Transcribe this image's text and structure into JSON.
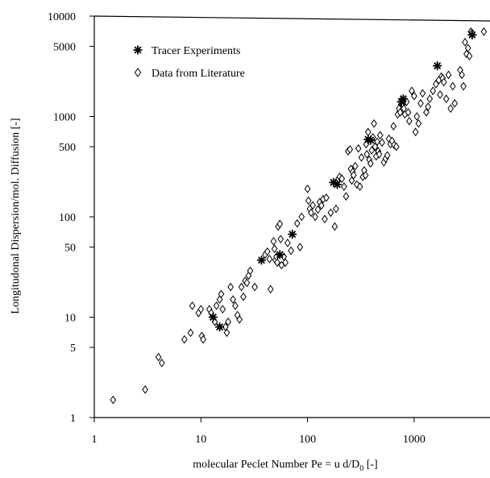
{
  "chart_data": {
    "type": "scatter",
    "xscale": "log",
    "yscale": "log",
    "xlim": [
      1,
      5000
    ],
    "ylim": [
      1,
      10000
    ],
    "x_ticks": [
      1,
      10,
      100,
      1000
    ],
    "x_tick_labels": [
      "1",
      "10",
      "100",
      "1000"
    ],
    "y_ticks": [
      1,
      5,
      10,
      50,
      100,
      500,
      1000,
      5000,
      10000
    ],
    "y_tick_labels": [
      "1",
      "5",
      "10",
      "50",
      "100",
      "500",
      "1000",
      "5000",
      "10000"
    ],
    "xlabel": {
      "main": "molecular Peclet Number  Pe = u d/D",
      "sub": "0",
      "tail": " [-]"
    },
    "ylabel": "Longitudonal Dispersion/mol. Diffusion [-]",
    "grid": false,
    "legend_position": "top-left",
    "series": [
      {
        "name": "Tracer Experiments",
        "marker": "asterisk",
        "points": [
          [
            13,
            10
          ],
          [
            15,
            8
          ],
          [
            37,
            37
          ],
          [
            55,
            42
          ],
          [
            72,
            67
          ],
          [
            175,
            220
          ],
          [
            190,
            210
          ],
          [
            370,
            590
          ],
          [
            390,
            580
          ],
          [
            760,
            1400
          ],
          [
            790,
            1500
          ],
          [
            1650,
            3200
          ],
          [
            3500,
            6500
          ]
        ]
      },
      {
        "name": "Data from Literature",
        "marker": "diamond",
        "points": [
          [
            1.5,
            1.5
          ],
          [
            3,
            1.9
          ],
          [
            4,
            4
          ],
          [
            4.3,
            3.5
          ],
          [
            7,
            6
          ],
          [
            8,
            7
          ],
          [
            8.3,
            13
          ],
          [
            9.5,
            11
          ],
          [
            10,
            12
          ],
          [
            10.2,
            6.5
          ],
          [
            10.5,
            6
          ],
          [
            12,
            12
          ],
          [
            12.5,
            11
          ],
          [
            13.5,
            9
          ],
          [
            14,
            13
          ],
          [
            15,
            15
          ],
          [
            15.5,
            17
          ],
          [
            16,
            12
          ],
          [
            17,
            8
          ],
          [
            17.5,
            7
          ],
          [
            18,
            9
          ],
          [
            19,
            20
          ],
          [
            20,
            15
          ],
          [
            21,
            13
          ],
          [
            22,
            10.5
          ],
          [
            23,
            9.5
          ],
          [
            24,
            20
          ],
          [
            25,
            16
          ],
          [
            26,
            23
          ],
          [
            27,
            22
          ],
          [
            28,
            26
          ],
          [
            29,
            29
          ],
          [
            32,
            20
          ],
          [
            40,
            42
          ],
          [
            42,
            45
          ],
          [
            44,
            38
          ],
          [
            45,
            19
          ],
          [
            48,
            57
          ],
          [
            49,
            48
          ],
          [
            50,
            37
          ],
          [
            51,
            40
          ],
          [
            52,
            35
          ],
          [
            53,
            80
          ],
          [
            55,
            85
          ],
          [
            56,
            60
          ],
          [
            57,
            33
          ],
          [
            60,
            40
          ],
          [
            62,
            35
          ],
          [
            65,
            55
          ],
          [
            70,
            46
          ],
          [
            80,
            86
          ],
          [
            85,
            50
          ],
          [
            88,
            100
          ],
          [
            100,
            190
          ],
          [
            102,
            145
          ],
          [
            105,
            120
          ],
          [
            108,
            110
          ],
          [
            112,
            130
          ],
          [
            118,
            100
          ],
          [
            125,
            118
          ],
          [
            130,
            140
          ],
          [
            135,
            130
          ],
          [
            140,
            150
          ],
          [
            145,
            95
          ],
          [
            150,
            155
          ],
          [
            165,
            110
          ],
          [
            180,
            80
          ],
          [
            185,
            120
          ],
          [
            190,
            230
          ],
          [
            200,
            250
          ],
          [
            210,
            240
          ],
          [
            220,
            200
          ],
          [
            230,
            160
          ],
          [
            240,
            450
          ],
          [
            250,
            470
          ],
          [
            255,
            300
          ],
          [
            260,
            230
          ],
          [
            265,
            280
          ],
          [
            270,
            260
          ],
          [
            280,
            320
          ],
          [
            290,
            210
          ],
          [
            300,
            480
          ],
          [
            310,
            200
          ],
          [
            320,
            390
          ],
          [
            330,
            250
          ],
          [
            340,
            290
          ],
          [
            350,
            260
          ],
          [
            355,
            530
          ],
          [
            360,
            420
          ],
          [
            370,
            700
          ],
          [
            380,
            370
          ],
          [
            390,
            340
          ],
          [
            400,
            460
          ],
          [
            410,
            620
          ],
          [
            420,
            850
          ],
          [
            430,
            500
          ],
          [
            440,
            400
          ],
          [
            450,
            560
          ],
          [
            460,
            450
          ],
          [
            470,
            420
          ],
          [
            480,
            650
          ],
          [
            500,
            550
          ],
          [
            520,
            350
          ],
          [
            540,
            380
          ],
          [
            560,
            410
          ],
          [
            580,
            600
          ],
          [
            600,
            530
          ],
          [
            620,
            570
          ],
          [
            640,
            800
          ],
          [
            650,
            520
          ],
          [
            680,
            500
          ],
          [
            700,
            1050
          ],
          [
            720,
            1200
          ],
          [
            740,
            1100
          ],
          [
            780,
            1300
          ],
          [
            800,
            1200
          ],
          [
            820,
            1050
          ],
          [
            850,
            1400
          ],
          [
            880,
            1100
          ],
          [
            900,
            900
          ],
          [
            950,
            1800
          ],
          [
            1000,
            1600
          ],
          [
            1030,
            700
          ],
          [
            1060,
            1000
          ],
          [
            1100,
            850
          ],
          [
            1150,
            1350
          ],
          [
            1200,
            1700
          ],
          [
            1300,
            1100
          ],
          [
            1350,
            1250
          ],
          [
            1400,
            1500
          ],
          [
            1500,
            1800
          ],
          [
            1600,
            2100
          ],
          [
            1700,
            2300
          ],
          [
            1750,
            1650
          ],
          [
            1800,
            2500
          ],
          [
            1850,
            2400
          ],
          [
            1900,
            2200
          ],
          [
            2000,
            1500
          ],
          [
            2100,
            2600
          ],
          [
            2200,
            1200
          ],
          [
            2300,
            2000
          ],
          [
            2400,
            1350
          ],
          [
            2700,
            2900
          ],
          [
            2800,
            2600
          ],
          [
            2900,
            2000
          ],
          [
            3000,
            5500
          ],
          [
            3100,
            4200
          ],
          [
            3200,
            4800
          ],
          [
            3300,
            4000
          ],
          [
            3400,
            7000
          ],
          [
            3500,
            6800
          ],
          [
            4500,
            7000
          ],
          [
            5000,
            5500
          ]
        ]
      }
    ]
  }
}
